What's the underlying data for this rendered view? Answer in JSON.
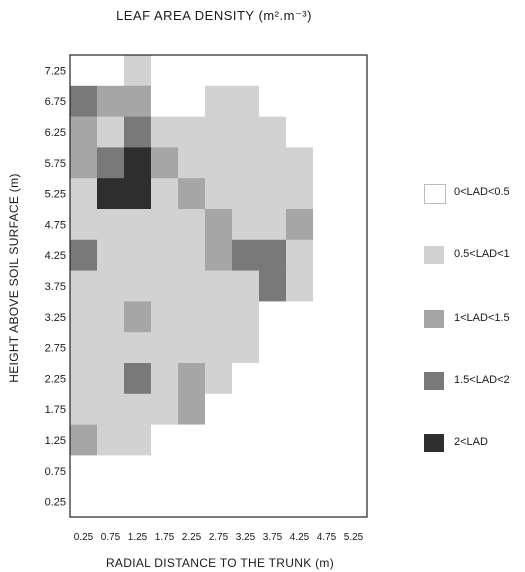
{
  "chart_data": {
    "type": "heatmap",
    "title": "LEAF AREA DENSITY (m².m⁻³)",
    "xlabel": "RADIAL DISTANCE TO THE TRUNK (m)",
    "ylabel": "HEIGHT ABOVE SOIL SURFACE (m)",
    "x": [
      0.25,
      0.75,
      1.25,
      1.75,
      2.25,
      2.75,
      3.25,
      3.75,
      4.25,
      4.75,
      5.25
    ],
    "x_tick_labels": [
      "0.25",
      "0.75",
      "1.25",
      "1.75",
      "2.25",
      "2.75",
      "3.25",
      "3.75",
      "4.25",
      "4.75",
      "5.25"
    ],
    "y": [
      7.25,
      6.75,
      6.25,
      5.75,
      5.25,
      4.75,
      4.25,
      3.75,
      3.25,
      2.75,
      2.25,
      1.75,
      1.25,
      0.75,
      0.25
    ],
    "y_tick_labels": [
      "7.25",
      "6.75",
      "6.25",
      "5.75",
      "5.25",
      "4.75",
      "4.25",
      "3.75",
      "3.25",
      "2.75",
      "2.25",
      "1.75",
      "1.25",
      "0.75",
      "0.25"
    ],
    "class_labels": [
      "0<LAD<0.5",
      "0.5<LAD<1",
      "1<LAD<1.5",
      "1.5<LAD<2",
      "2<LAD"
    ],
    "class_colors": [
      "#ffffff",
      "#d2d2d2",
      "#a6a6a6",
      "#797979",
      "#2e2e2e"
    ],
    "values": [
      [
        0,
        0,
        1,
        0,
        0,
        0,
        0,
        0,
        0,
        0,
        0
      ],
      [
        3,
        2,
        2,
        0,
        0,
        1,
        1,
        0,
        0,
        0,
        0
      ],
      [
        2,
        1,
        3,
        1,
        1,
        1,
        1,
        1,
        0,
        0,
        0
      ],
      [
        2,
        3,
        4,
        2,
        1,
        1,
        1,
        1,
        1,
        0,
        0
      ],
      [
        1,
        4,
        4,
        1,
        2,
        1,
        1,
        1,
        1,
        0,
        0
      ],
      [
        1,
        1,
        1,
        1,
        1,
        2,
        1,
        1,
        2,
        0,
        0
      ],
      [
        3,
        1,
        1,
        1,
        1,
        2,
        3,
        3,
        1,
        0,
        0
      ],
      [
        1,
        1,
        1,
        1,
        1,
        1,
        1,
        3,
        1,
        0,
        0
      ],
      [
        1,
        1,
        2,
        1,
        1,
        1,
        1,
        0,
        0,
        0,
        0
      ],
      [
        1,
        1,
        1,
        1,
        1,
        1,
        1,
        0,
        0,
        0,
        0
      ],
      [
        1,
        1,
        3,
        1,
        2,
        1,
        0,
        0,
        0,
        0,
        0
      ],
      [
        1,
        1,
        1,
        1,
        2,
        0,
        0,
        0,
        0,
        0,
        0
      ],
      [
        2,
        1,
        1,
        0,
        0,
        0,
        0,
        0,
        0,
        0,
        0
      ],
      [
        0,
        0,
        0,
        0,
        0,
        0,
        0,
        0,
        0,
        0,
        0
      ],
      [
        0,
        0,
        0,
        0,
        0,
        0,
        0,
        0,
        0,
        0,
        0
      ]
    ],
    "grid": false,
    "legend_position": "right"
  }
}
